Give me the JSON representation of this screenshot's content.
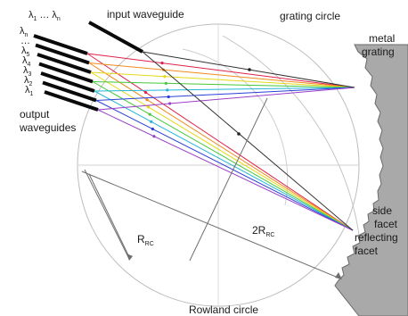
{
  "labels": {
    "input_waveguide": "input waveguide",
    "input_lambda_first": "λ",
    "input_lambda_first_sub": "1",
    "input_lambda_dots": "…",
    "input_lambda_last": "λ",
    "input_lambda_last_sub": "n",
    "grating_circle": "grating circle",
    "metal_line1": "metal",
    "metal_line2": "grating",
    "output_line1": "output",
    "output_line2": "waveguides",
    "r_main": "R",
    "r_sub": "RC",
    "r2_main": "2R",
    "r2_sub": "RC",
    "side_line1": "side",
    "side_line2": "facet",
    "refl_line1": "reflecting",
    "refl_line2": "facet",
    "rowland": "Rowland circle"
  },
  "wavelengths": [
    {
      "main": "λ",
      "sub": "n"
    },
    {
      "main": "…",
      "sub": ""
    },
    {
      "main": "λ",
      "sub": "5"
    },
    {
      "main": "λ",
      "sub": "4"
    },
    {
      "main": "λ",
      "sub": "3"
    },
    {
      "main": "λ",
      "sub": "2"
    },
    {
      "main": "λ",
      "sub": "1"
    }
  ],
  "colors": {
    "rays": [
      "#e0204a",
      "#f08a1c",
      "#e6d81a",
      "#45c83a",
      "#22b6d8",
      "#2a3fd8",
      "#9a3fc8"
    ],
    "waveguide": "#0a0a0a",
    "circle": "#b4b4b4",
    "grating_fill": "#a9a9a9",
    "grating_edge": "#6a6a6a",
    "guide_line": "#6e6e6e"
  }
}
